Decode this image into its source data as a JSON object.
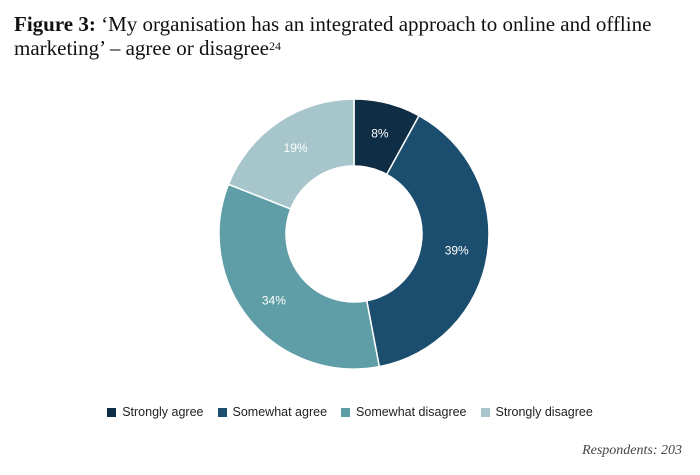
{
  "title": {
    "figure": "Figure 3:",
    "text": " ‘My organisation has an integrated approach to online and offline marketing’ – agree or disagree",
    "superscript": "24"
  },
  "chart_data": {
    "type": "pie",
    "donut": true,
    "categories": [
      "Strongly agree",
      "Somewhat agree",
      "Somewhat disagree",
      "Strongly disagree"
    ],
    "values": [
      8,
      39,
      34,
      19
    ],
    "labels": [
      "8%",
      "39%",
      "34%",
      "19%"
    ],
    "colors": [
      "#0f2d44",
      "#1b4d6e",
      "#5f9ea6",
      "#a6c6cc"
    ],
    "legend_position": "bottom"
  },
  "footer": {
    "respondents": "Respondents: 203"
  }
}
